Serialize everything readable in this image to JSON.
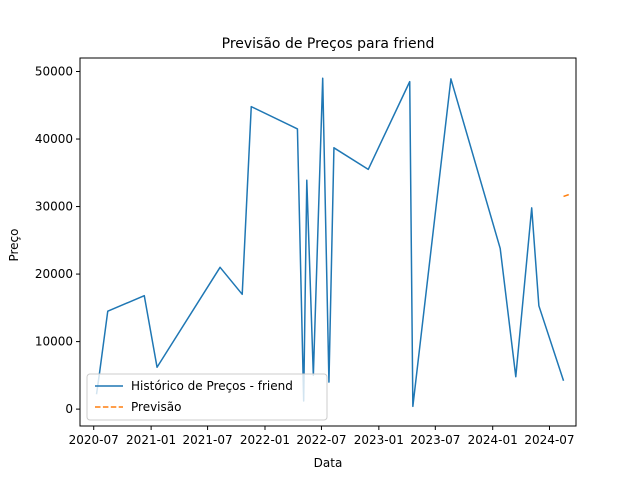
{
  "chart_data": {
    "type": "line",
    "title": "Previsão de Preços para friend",
    "xlabel": "Data",
    "ylabel": "Preço",
    "xlim": [
      "2020-05-18",
      "2024-09-24"
    ],
    "ylim": [
      -2500,
      52000
    ],
    "x_ticks": [
      "2020-07",
      "2021-01",
      "2021-07",
      "2022-01",
      "2022-07",
      "2023-01",
      "2023-07",
      "2024-01",
      "2024-07"
    ],
    "y_ticks": [
      0,
      10000,
      20000,
      30000,
      40000,
      50000
    ],
    "grid": false,
    "legend_position": "lower-left",
    "series": [
      {
        "name": "Histórico de Preços - friend",
        "color": "#1f77b4",
        "style": "solid",
        "x": [
          "2020-07-10",
          "2020-07-20",
          "2020-08-15",
          "2020-12-10",
          "2021-01-20",
          "2021-08-10",
          "2021-10-20",
          "2021-11-18",
          "2022-04-15",
          "2022-05-05",
          "2022-05-15",
          "2022-06-05",
          "2022-07-05",
          "2022-07-25",
          "2022-08-10",
          "2022-11-28",
          "2023-04-10",
          "2023-04-20",
          "2023-08-20",
          "2024-01-25",
          "2024-03-15",
          "2024-05-05",
          "2024-05-28",
          "2024-08-15"
        ],
        "y": [
          2200,
          5500,
          14500,
          16800,
          6200,
          21000,
          17000,
          44800,
          41500,
          1200,
          33900,
          5000,
          49000,
          4000,
          38700,
          35500,
          48500,
          400,
          48900,
          23800,
          4800,
          29800,
          15300,
          4200
        ]
      },
      {
        "name": "Previsão",
        "color": "#ff7f0e",
        "style": "dashed",
        "x": [
          "2024-08-15",
          "2024-09-03"
        ],
        "y": [
          31500,
          31800
        ]
      }
    ],
    "legend": [
      {
        "label": "Histórico de Preços - friend",
        "color": "#1f77b4",
        "style": "solid"
      },
      {
        "label": "Previsão",
        "color": "#ff7f0e",
        "style": "dashed"
      }
    ]
  }
}
